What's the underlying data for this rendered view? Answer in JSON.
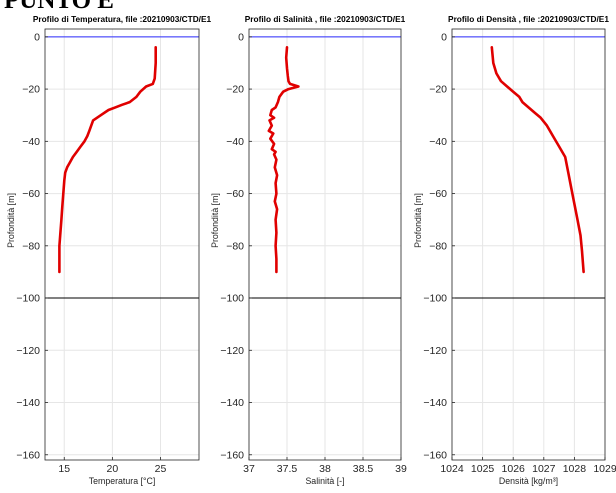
{
  "page": {
    "title": "PUNTO E"
  },
  "style": {
    "line_color": "#e00000",
    "surface_line_color": "#2b2bff",
    "bottom_line_color": "#000000",
    "grid_color": "#e6e6e6",
    "axis_color": "#262626"
  },
  "chart_data": [
    {
      "type": "line",
      "title": "Profilo di Temperatura, file :20210903/CTD/E1",
      "xlabel": "Temperatura [°C]",
      "ylabel": "Profondità [m]",
      "xlim": [
        13,
        29
      ],
      "ylim": [
        -162,
        3
      ],
      "xticks": [
        15,
        20,
        25
      ],
      "yticks": [
        0,
        -20,
        -40,
        -60,
        -80,
        -100,
        -120,
        -140,
        -160
      ],
      "grid": true,
      "reference_lines": [
        {
          "y": 0,
          "color": "surface"
        },
        {
          "y": -100,
          "color": "bottom"
        }
      ],
      "series": [
        {
          "x": [
            24.5,
            24.5,
            24.4,
            24.2,
            23.5,
            22.9,
            22.5,
            21.8,
            21.0,
            20.3,
            19.6,
            18.8,
            18.0,
            17.6,
            17.4,
            17.1,
            16.7,
            16.3,
            15.9,
            15.6,
            15.3,
            15.1,
            15.0,
            14.9,
            14.8,
            14.7,
            14.6,
            14.5,
            14.5,
            14.5
          ],
          "y": [
            -4,
            -10,
            -16,
            -18,
            -19,
            -21,
            -23,
            -25,
            -26,
            -27,
            -28,
            -30,
            -32,
            -36,
            -38,
            -40,
            -42,
            -44,
            -46,
            -48,
            -50,
            -52,
            -55,
            -60,
            -65,
            -70,
            -75,
            -80,
            -85,
            -90
          ]
        }
      ]
    },
    {
      "type": "line",
      "title": "Profilo di Salinità , file :20210903/CTD/E1",
      "xlabel": "Salinità [-]",
      "ylabel": "Profondità [m]",
      "xlim": [
        37,
        39
      ],
      "ylim": [
        -162,
        3
      ],
      "xticks": [
        37,
        37.5,
        38,
        38.5,
        39
      ],
      "yticks": [
        0,
        -20,
        -40,
        -60,
        -80,
        -100,
        -120,
        -140,
        -160
      ],
      "grid": true,
      "reference_lines": [
        {
          "y": 0,
          "color": "surface"
        },
        {
          "y": -100,
          "color": "bottom"
        }
      ],
      "series": [
        {
          "x": [
            37.5,
            37.49,
            37.5,
            37.51,
            37.52,
            37.54,
            37.65,
            37.52,
            37.45,
            37.4,
            37.38,
            37.35,
            37.3,
            37.28,
            37.33,
            37.27,
            37.3,
            37.26,
            37.32,
            37.28,
            37.33,
            37.3,
            37.35,
            37.33,
            37.36,
            37.34,
            37.37,
            37.35,
            37.36,
            37.34,
            37.37,
            37.35,
            37.36,
            37.35,
            37.36,
            37.36,
            37.36
          ],
          "y": [
            -4,
            -8,
            -12,
            -15,
            -17,
            -18,
            -19,
            -20,
            -21,
            -23,
            -25,
            -27,
            -28,
            -30,
            -31,
            -32,
            -34,
            -36,
            -37,
            -39,
            -41,
            -43,
            -44,
            -45,
            -47,
            -50,
            -53,
            -56,
            -60,
            -63,
            -66,
            -70,
            -75,
            -80,
            -85,
            -88,
            -90
          ]
        }
      ]
    },
    {
      "type": "line",
      "title": "Profilo di Densità , file :20210903/CTD/E1",
      "xlabel": "Densità [kg/m³]",
      "ylabel": "Profondità [m]",
      "xlim": [
        1024,
        1029
      ],
      "ylim": [
        -162,
        3
      ],
      "xticks": [
        1024,
        1025,
        1026,
        1027,
        1028,
        1029
      ],
      "yticks": [
        0,
        -20,
        -40,
        -60,
        -80,
        -100,
        -120,
        -140,
        -160
      ],
      "grid": true,
      "reference_lines": [
        {
          "y": 0,
          "color": "surface"
        },
        {
          "y": -100,
          "color": "bottom"
        }
      ],
      "series": [
        {
          "x": [
            1025.3,
            1025.35,
            1025.45,
            1025.6,
            1025.8,
            1026.0,
            1026.2,
            1026.3,
            1026.5,
            1026.7,
            1026.9,
            1027.1,
            1027.3,
            1027.5,
            1027.7,
            1027.8,
            1027.9,
            1028.0,
            1028.1,
            1028.2,
            1028.25,
            1028.3
          ],
          "y": [
            -4,
            -10,
            -14,
            -17,
            -19,
            -21,
            -23,
            -25,
            -27,
            -29,
            -31,
            -34,
            -38,
            -42,
            -46,
            -52,
            -58,
            -64,
            -70,
            -76,
            -82,
            -90
          ]
        }
      ]
    }
  ]
}
